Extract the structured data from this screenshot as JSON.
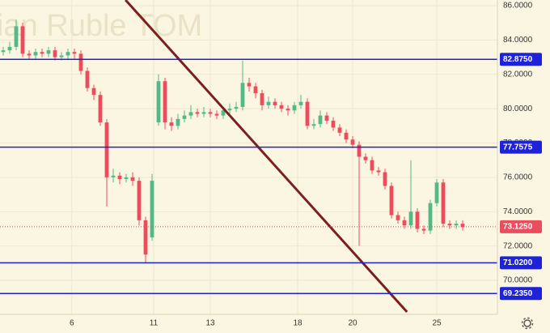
{
  "chart_data": {
    "type": "candlestick",
    "watermark": "ian Ruble TOM",
    "x": [
      0,
      1,
      2,
      3,
      4,
      5,
      6,
      7,
      8,
      9,
      10,
      11,
      12,
      13,
      14,
      15,
      16,
      17,
      18,
      19,
      20,
      21,
      22,
      23,
      24,
      25,
      26,
      27,
      28,
      29,
      30,
      31,
      32,
      33,
      34,
      35,
      36,
      37,
      38,
      39,
      40,
      41,
      42,
      43,
      44,
      45,
      46,
      47,
      48,
      49,
      50,
      51,
      52,
      53,
      54,
      55,
      56,
      57,
      58,
      59,
      60,
      61,
      62,
      63,
      64,
      65,
      66,
      67,
      68,
      69,
      70,
      71
    ],
    "open": [
      83.3,
      83.4,
      83.6,
      84.8,
      83.2,
      83.1,
      83.3,
      83.2,
      83.4,
      83.0,
      83.1,
      83.3,
      83.2,
      82.2,
      81.2,
      80.8,
      79.2,
      76.0,
      76.1,
      75.9,
      76.0,
      75.8,
      73.5,
      72.5,
      79.2,
      81.6,
      79.2,
      79.0,
      79.4,
      79.6,
      79.8,
      79.7,
      79.8,
      79.7,
      79.6,
      79.9,
      80.0,
      80.1,
      81.5,
      81.3,
      80.9,
      80.2,
      80.4,
      80.2,
      80.0,
      79.9,
      80.2,
      80.4,
      79.0,
      79.1,
      79.6,
      79.3,
      78.9,
      78.6,
      78.2,
      77.9,
      77.2,
      77.0,
      76.4,
      76.3,
      75.5,
      73.8,
      73.5,
      73.2,
      74.0,
      73.0,
      72.9,
      74.5,
      75.7,
      73.3,
      73.2,
      73.3
    ],
    "high": [
      83.6,
      83.9,
      85.2,
      85.0,
      83.4,
      83.5,
      83.5,
      83.6,
      83.6,
      83.3,
      83.5,
      83.5,
      83.4,
      82.4,
      81.4,
      81.0,
      79.4,
      76.5,
      76.3,
      76.2,
      76.3,
      76.0,
      73.7,
      76.2,
      82.0,
      81.8,
      79.5,
      79.7,
      79.9,
      80.2,
      80.0,
      80.1,
      80.0,
      79.9,
      80.1,
      80.3,
      80.4,
      82.8,
      81.8,
      81.5,
      81.1,
      80.7,
      80.6,
      80.4,
      80.2,
      80.4,
      80.8,
      80.6,
      79.4,
      79.9,
      79.8,
      79.5,
      79.1,
      78.8,
      78.4,
      78.1,
      77.4,
      77.2,
      76.6,
      76.5,
      75.7,
      74.0,
      73.7,
      77.0,
      74.2,
      73.2,
      74.7,
      75.9,
      75.9,
      73.5,
      73.5,
      73.5
    ],
    "low": [
      83.1,
      83.2,
      83.4,
      83.0,
      82.9,
      82.9,
      83.0,
      83.0,
      82.8,
      82.8,
      82.9,
      82.9,
      82.0,
      81.0,
      80.5,
      79.0,
      74.3,
      75.7,
      75.6,
      75.7,
      75.5,
      73.2,
      71.0,
      72.3,
      79.0,
      78.8,
      78.7,
      78.8,
      79.2,
      79.4,
      79.5,
      79.5,
      79.5,
      79.4,
      79.4,
      79.7,
      79.8,
      79.9,
      81.0,
      80.6,
      79.9,
      80.0,
      80.0,
      79.8,
      79.6,
      79.7,
      80.0,
      78.8,
      78.8,
      78.9,
      79.1,
      78.7,
      78.4,
      78.0,
      77.7,
      72.0,
      76.8,
      76.2,
      76.1,
      75.3,
      73.6,
      73.3,
      73.0,
      73.0,
      72.8,
      72.7,
      72.7,
      74.3,
      73.1,
      73.0,
      73.0,
      72.9
    ],
    "close": [
      83.4,
      83.6,
      84.8,
      83.2,
      83.1,
      83.3,
      83.2,
      83.4,
      83.0,
      83.1,
      83.3,
      83.2,
      82.2,
      81.2,
      80.8,
      79.2,
      76.0,
      76.1,
      75.9,
      76.0,
      75.8,
      73.5,
      71.5,
      75.8,
      81.6,
      79.2,
      79.0,
      79.4,
      79.6,
      79.8,
      79.7,
      79.8,
      79.7,
      79.6,
      79.9,
      80.0,
      80.1,
      81.5,
      81.3,
      80.9,
      80.2,
      80.4,
      80.2,
      80.0,
      79.9,
      80.2,
      80.4,
      79.0,
      79.1,
      79.6,
      79.3,
      78.9,
      78.6,
      78.2,
      77.9,
      77.2,
      77.0,
      76.4,
      76.3,
      75.5,
      73.8,
      73.5,
      73.2,
      74.0,
      73.0,
      72.9,
      74.5,
      75.7,
      73.3,
      73.2,
      73.3,
      73.1
    ],
    "up_color": "#53b987",
    "down_color": "#eb4d5c",
    "xlim": [
      -0.5,
      76.375
    ],
    "xticks": [
      {
        "value": 10.6,
        "label": "6"
      },
      {
        "value": 23.25,
        "label": "11"
      },
      {
        "value": 32,
        "label": "13"
      },
      {
        "value": 45.5,
        "label": "18"
      },
      {
        "value": 54,
        "label": "20"
      },
      {
        "value": 67,
        "label": "25"
      }
    ],
    "ylim": [
      68.02,
      86.33
    ],
    "yticks": [
      {
        "value": 86,
        "label": "86.0000"
      },
      {
        "value": 84,
        "label": "84.0000"
      },
      {
        "value": 82,
        "label": "82.0000"
      },
      {
        "value": 80,
        "label": "80.0000"
      },
      {
        "value": 78,
        "label": "78.0000"
      },
      {
        "value": 76,
        "label": "76.0000"
      },
      {
        "value": 74,
        "label": "74.0000"
      },
      {
        "value": 72,
        "label": "72.0000"
      },
      {
        "value": 70,
        "label": "70.0000"
      }
    ],
    "grid": true,
    "hlines": {
      "values": [
        82.875,
        77.7575,
        71.02,
        69.235
      ],
      "value_labels": [
        "82.8750",
        "77.7575",
        "71.0200",
        "69.2350"
      ],
      "color": "#1e22d8"
    },
    "last_price": {
      "value": 73.125,
      "label": "73.1250",
      "color": "#eb4d5c"
    },
    "trend_line": {
      "x": [
        18.9,
        62.4
      ],
      "y": [
        86.33,
        68.16
      ],
      "color": "#7b1f1f"
    }
  }
}
